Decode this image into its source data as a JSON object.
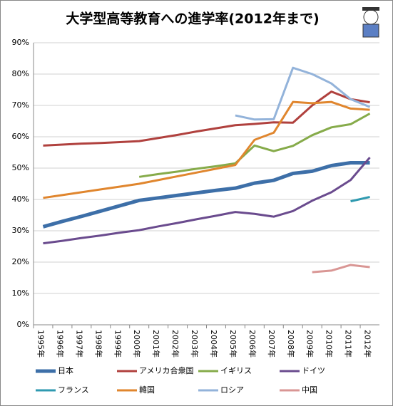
{
  "chart_data": {
    "type": "line",
    "title": "大学型高等教育への進学率(2012年まで)",
    "categories": [
      "1995年",
      "1996年",
      "1997年",
      "1998年",
      "1999年",
      "2000年",
      "2001年",
      "2002年",
      "2003年",
      "2004年",
      "2005年",
      "2006年",
      "2007年",
      "2008年",
      "2009年",
      "2010年",
      "2011年",
      "2012年"
    ],
    "series": [
      {
        "name": "日本",
        "color": "#3d6fa8",
        "values": [
          31.3,
          33.0,
          34.6,
          36.3,
          38.0,
          39.7,
          40.5,
          41.3,
          42.1,
          42.9,
          43.6,
          45.2,
          46.1,
          48.3,
          49.0,
          50.8,
          51.7,
          51.7
        ]
      },
      {
        "name": "アメリカ合衆国",
        "color": "#b0413e",
        "values": [
          57.2,
          57.5,
          57.8,
          58.0,
          58.3,
          58.6,
          59.6,
          60.6,
          61.7,
          62.7,
          63.7,
          64.1,
          64.6,
          64.5,
          70.0,
          74.4,
          72.0,
          71.0
        ]
      },
      {
        "name": "イギリス",
        "color": "#86ab4a",
        "values": [
          null,
          null,
          null,
          null,
          null,
          47.2,
          48.1,
          48.9,
          49.8,
          50.6,
          51.5,
          57.2,
          55.4,
          57.1,
          60.5,
          63.0,
          64.0,
          67.4
        ]
      },
      {
        "name": "ドイツ",
        "color": "#6a4b8e",
        "values": [
          26.0,
          26.8,
          27.7,
          28.5,
          29.4,
          30.2,
          31.4,
          32.5,
          33.7,
          34.8,
          36.0,
          35.4,
          34.5,
          36.3,
          39.6,
          42.3,
          46.2,
          53.4
        ]
      },
      {
        "name": "フランス",
        "color": "#2f9ab0",
        "values": [
          null,
          null,
          null,
          null,
          null,
          null,
          null,
          null,
          null,
          null,
          null,
          null,
          null,
          null,
          null,
          null,
          39.4,
          40.8
        ]
      },
      {
        "name": "韓国",
        "color": "#e0862e",
        "values": [
          40.5,
          41.4,
          42.3,
          43.2,
          44.1,
          45.0,
          46.2,
          47.4,
          48.6,
          49.8,
          51.0,
          59.0,
          61.3,
          71.1,
          70.7,
          71.1,
          69.0,
          68.6
        ]
      },
      {
        "name": "ロシア",
        "color": "#93b3da",
        "values": [
          null,
          null,
          null,
          null,
          null,
          null,
          null,
          null,
          null,
          null,
          66.8,
          65.5,
          65.6,
          82.0,
          80.0,
          77.0,
          72.0,
          69.5
        ]
      },
      {
        "name": "中国",
        "color": "#d99694",
        "values": [
          null,
          null,
          null,
          null,
          null,
          null,
          null,
          null,
          null,
          null,
          null,
          null,
          null,
          null,
          16.8,
          17.3,
          19.1,
          18.4
        ]
      }
    ],
    "ylim": [
      0,
      90
    ],
    "yticks": [
      {
        "value": 0,
        "label": "0%"
      },
      {
        "value": 10,
        "label": "10%"
      },
      {
        "value": 20,
        "label": "20%"
      },
      {
        "value": 30,
        "label": "30%"
      },
      {
        "value": 40,
        "label": "40%"
      },
      {
        "value": 50,
        "label": "50%"
      },
      {
        "value": 60,
        "label": "60%"
      },
      {
        "value": 70,
        "label": "70%"
      },
      {
        "value": 80,
        "label": "80%"
      },
      {
        "value": 90,
        "label": "90%"
      }
    ],
    "grid": true
  }
}
